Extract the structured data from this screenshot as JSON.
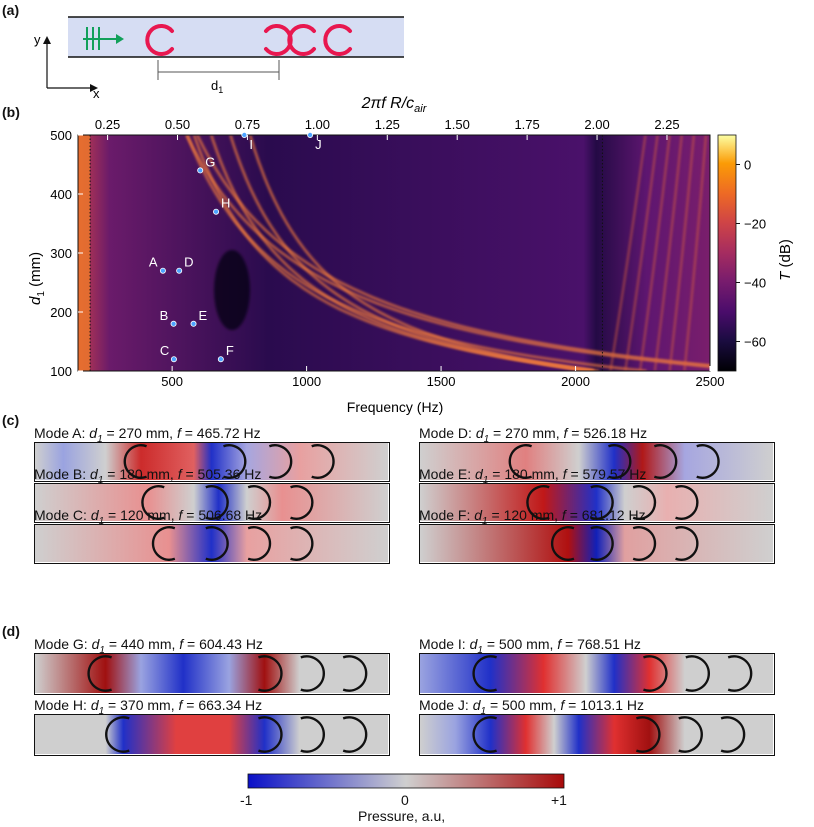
{
  "panel_labels": {
    "a": "(a)",
    "b": "(b)",
    "c": "(c)",
    "d": "(d)"
  },
  "schematic": {
    "axis_y": "y",
    "axis_x": "x",
    "distance_label_main": "d",
    "distance_label_sub": "1",
    "colors": {
      "channel": "#d6ddf3",
      "resonator": "#e8174f",
      "wave": "#12a05a"
    }
  },
  "chart_data": {
    "type": "heatmap",
    "title": "",
    "xlabel": "Frequency (Hz)",
    "ylabel_main": "d",
    "ylabel_sub": "1",
    "ylabel_unit": "(mm)",
    "top_label": {
      "base": "2πf R/c",
      "sub": "air"
    },
    "xlim": [
      150,
      2500
    ],
    "ylim": [
      100,
      500
    ],
    "x_ticks": [
      500,
      1000,
      1500,
      2000,
      2500
    ],
    "y_ticks": [
      100,
      200,
      300,
      400,
      500
    ],
    "top_ticks": [
      0.25,
      0.5,
      0.75,
      1.0,
      1.25,
      1.5,
      1.75,
      2.0,
      2.25
    ],
    "top_tick_labels": [
      "0.25",
      "0.50",
      "0.75",
      "1.00",
      "1.25",
      "1.50",
      "1.75",
      "2.00",
      "2.25"
    ],
    "top_scale_hz_per_unit": 1040,
    "colorbar": {
      "label_main": "T",
      "label_unit": "(dB)",
      "range": [
        -70,
        10
      ],
      "ticks": [
        0,
        -20,
        -40,
        -60
      ],
      "tick_labels": [
        "0",
        "−20",
        "−40",
        "−60"
      ]
    },
    "vertical_dotted_lines_hz": [
      195,
      2100
    ],
    "points": [
      {
        "label": "A",
        "f": 465.72,
        "d1": 270
      },
      {
        "label": "B",
        "f": 505.36,
        "d1": 180
      },
      {
        "label": "C",
        "f": 506.68,
        "d1": 120
      },
      {
        "label": "D",
        "f": 526.18,
        "d1": 270
      },
      {
        "label": "E",
        "f": 579.57,
        "d1": 180
      },
      {
        "label": "F",
        "f": 681.12,
        "d1": 120
      },
      {
        "label": "G",
        "f": 604.43,
        "d1": 440
      },
      {
        "label": "H",
        "f": 663.34,
        "d1": 370
      },
      {
        "label": "I",
        "f": 768.51,
        "d1": 500
      },
      {
        "label": "J",
        "f": 1013.1,
        "d1": 500
      }
    ],
    "curves": [
      {
        "kind": "hyperbola",
        "a": 20,
        "b": 0.06
      },
      {
        "kind": "hyperbola",
        "a": 60,
        "b": 0.06
      },
      {
        "kind": "hyperbola",
        "a": 130,
        "b": 0.075
      },
      {
        "kind": "hyperbola",
        "a": 205,
        "b": 0.085
      },
      {
        "kind": "hyperbola",
        "a": 290,
        "b": 0.09
      },
      {
        "kind": "hyperbola",
        "a": 380,
        "b": 0.095
      },
      {
        "kind": "hyperbola",
        "a": 470,
        "b": 0.1
      }
    ]
  },
  "modes_c": [
    {
      "id": "A",
      "title_prefix": "Mode A: ",
      "var": "d",
      "var_sub": "1",
      "d1_text": " = 270 mm, ",
      "f_var": "f",
      "f_text": " = 465.72 Hz"
    },
    {
      "id": "D",
      "title_prefix": "Mode D: ",
      "var": "d",
      "var_sub": "1",
      "d1_text": " = 270 mm, ",
      "f_var": "f",
      "f_text": " = 526.18 Hz"
    },
    {
      "id": "B",
      "title_prefix": "Mode B: ",
      "var": "d",
      "var_sub": "1",
      "d1_text": " = 180 mm, ",
      "f_var": "f",
      "f_text": " = 505.36 Hz"
    },
    {
      "id": "E",
      "title_prefix": "Mode E: ",
      "var": "d",
      "var_sub": "1",
      "d1_text": " = 180 mm, ",
      "f_var": "f",
      "f_text": " = 579.57 Hz"
    },
    {
      "id": "C",
      "title_prefix": "Mode C: ",
      "var": "d",
      "var_sub": "1",
      "d1_text": " = 120 mm, ",
      "f_var": "f",
      "f_text": " = 506.68 Hz"
    },
    {
      "id": "F",
      "title_prefix": "Mode F: ",
      "var": "d",
      "var_sub": "1",
      "d1_text": " = 120 mm, ",
      "f_var": "f",
      "f_text": " = 681.12 Hz"
    }
  ],
  "modes_d": [
    {
      "id": "G",
      "title_prefix": "Mode G: ",
      "var": "d",
      "var_sub": "1",
      "d1_text": " = 440 mm, ",
      "f_var": "f",
      "f_text": " = 604.43 Hz"
    },
    {
      "id": "I",
      "title_prefix": "Mode I: ",
      "var": "d",
      "var_sub": "1",
      "d1_text": " = 500 mm, ",
      "f_var": "f",
      "f_text": " = 768.51 Hz"
    },
    {
      "id": "H",
      "title_prefix": "Mode H: ",
      "var": "d",
      "var_sub": "1",
      "d1_text": " = 370 mm, ",
      "f_var": "f",
      "f_text": " = 663.34 Hz"
    },
    {
      "id": "J",
      "title_prefix": "Mode J: ",
      "var": "d",
      "var_sub": "1",
      "d1_text": " = 500 mm, ",
      "f_var": "f",
      "f_text": " = 1013.1 Hz"
    }
  ],
  "pressure_colorbar": {
    "min_label": "-1",
    "mid_label": "0",
    "max_label": "+1",
    "title": "Pressure, a.u,",
    "colors": {
      "neg": "#0a10c8",
      "zero": "#cfcfcf",
      "pos": "#a80a0a"
    }
  }
}
